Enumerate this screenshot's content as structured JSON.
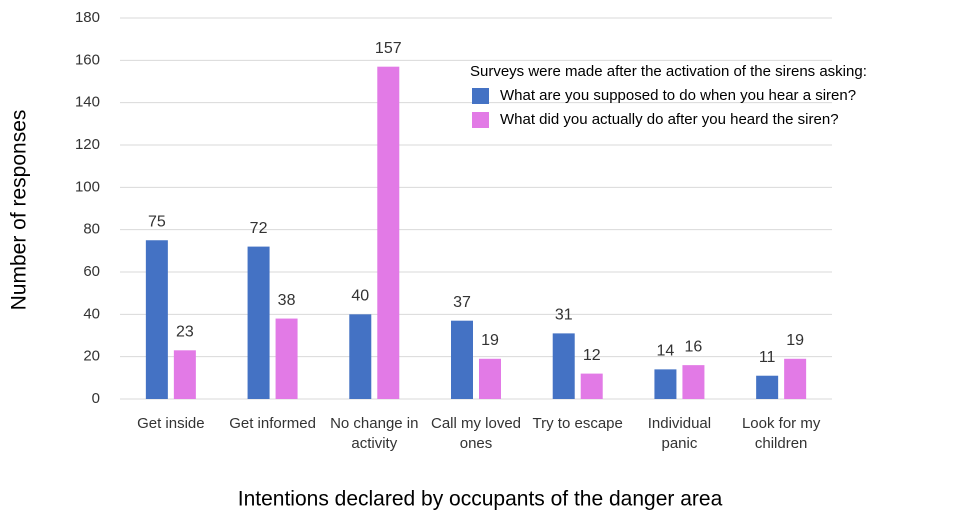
{
  "chart_data": {
    "type": "bar",
    "x_label": "Intentions declared by occupants of the danger area",
    "y_label": "Number of responses",
    "legend_title": "Surveys were made after the activation of the sirens asking:",
    "categories": [
      "Get inside",
      "Get informed",
      "No change in activity",
      "Call my loved ones",
      "Try to escape",
      "Individual panic",
      "Look for my children"
    ],
    "series": [
      {
        "name": "What are you supposed to do when you hear a siren?",
        "color": "#4472c4",
        "values": [
          75,
          72,
          40,
          37,
          31,
          14,
          11
        ]
      },
      {
        "name": "What did you actually do after you heard the siren?",
        "color": "#e27ae6",
        "values": [
          23,
          38,
          157,
          19,
          12,
          16,
          19
        ]
      }
    ],
    "ylim": [
      0,
      180
    ],
    "yticks": [
      0,
      20,
      40,
      60,
      80,
      100,
      120,
      140,
      160,
      180
    ],
    "grid": true
  }
}
